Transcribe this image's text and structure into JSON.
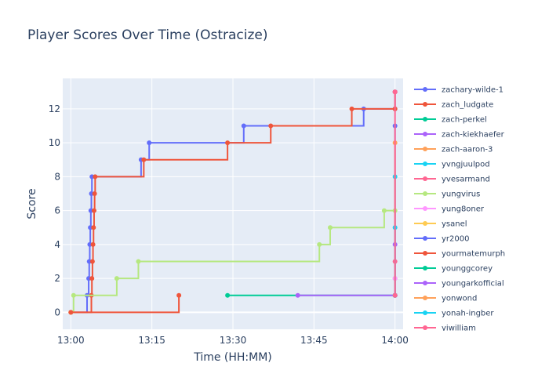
{
  "chart_data": {
    "type": "line",
    "line_shape": "step",
    "title": "Player Scores Over Time (Ostracize)",
    "xlabel": "Time (HH:MM)",
    "ylabel": "Score",
    "x_unit": "minutes after 13:00",
    "xlim": [
      -1.5,
      61.5
    ],
    "ylim": [
      -1,
      13.8
    ],
    "x_ticks": [
      {
        "value": 0,
        "label": "13:00"
      },
      {
        "value": 15,
        "label": "13:15"
      },
      {
        "value": 30,
        "label": "13:30"
      },
      {
        "value": 45,
        "label": "13:45"
      },
      {
        "value": 60,
        "label": "14:00"
      }
    ],
    "y_ticks": [
      0,
      2,
      4,
      6,
      8,
      10,
      12
    ],
    "grid": true,
    "legend_position": "right",
    "plot_background": "#e5ecf6",
    "series": [
      {
        "name": "zachary-wilde-1",
        "color": "#636efa",
        "points": [
          [
            0,
            0
          ],
          [
            3,
            1
          ],
          [
            3.3,
            2
          ],
          [
            3.4,
            3
          ],
          [
            3.5,
            4
          ],
          [
            3.6,
            5
          ],
          [
            3.7,
            6
          ],
          [
            3.8,
            7
          ],
          [
            3.9,
            8
          ],
          [
            13,
            9
          ],
          [
            14.5,
            10
          ],
          [
            32,
            11
          ],
          [
            54.2,
            12
          ],
          [
            60,
            12
          ],
          [
            60,
            13
          ]
        ]
      },
      {
        "name": "zach_ludgate",
        "color": "#ef553b",
        "points": [
          [
            0,
            0
          ],
          [
            3.8,
            1
          ],
          [
            3.9,
            2
          ],
          [
            4,
            3
          ],
          [
            4.1,
            4
          ],
          [
            4.2,
            5
          ],
          [
            4.3,
            6
          ],
          [
            4.4,
            7
          ],
          [
            4.5,
            8
          ],
          [
            13.5,
            9
          ],
          [
            29,
            10
          ],
          [
            37,
            11
          ],
          [
            52,
            12
          ],
          [
            60,
            12
          ],
          [
            60,
            13
          ]
        ]
      },
      {
        "name": "zach-perkel",
        "color": "#00cc96",
        "points": [
          [
            29,
            1
          ],
          [
            60,
            1
          ]
        ]
      },
      {
        "name": "zach-kiekhaefer",
        "color": "#ab63fa",
        "points": [
          [
            42,
            1
          ],
          [
            60,
            1
          ]
        ]
      },
      {
        "name": "zach-aaron-3",
        "color": "#ffa15a",
        "points": [
          [
            60,
            1
          ],
          [
            60,
            2
          ]
        ]
      },
      {
        "name": "yvngjuulpod",
        "color": "#19d3f3",
        "points": [
          [
            60,
            1
          ],
          [
            60,
            8
          ]
        ]
      },
      {
        "name": "yvesarmand",
        "color": "#ff6692",
        "points": [
          [
            60,
            1
          ],
          [
            60,
            3
          ]
        ]
      },
      {
        "name": "yungvirus",
        "color": "#b6e880",
        "points": [
          [
            0,
            0
          ],
          [
            0.5,
            1
          ],
          [
            8.5,
            2
          ],
          [
            12.5,
            3
          ],
          [
            46,
            4
          ],
          [
            48,
            5
          ],
          [
            58,
            6
          ],
          [
            60,
            6
          ]
        ]
      },
      {
        "name": "yung8oner",
        "color": "#ff97ff",
        "points": [
          [
            60,
            1
          ],
          [
            60,
            2
          ]
        ]
      },
      {
        "name": "ysanel",
        "color": "#fecb52",
        "points": [
          [
            0,
            0
          ]
        ]
      },
      {
        "name": "yr2000",
        "color": "#636efa",
        "points": [
          [
            60,
            1
          ],
          [
            60,
            11
          ]
        ]
      },
      {
        "name": "yourmatemurph",
        "color": "#ef553b",
        "points": [
          [
            0,
            0
          ],
          [
            20,
            1
          ]
        ]
      },
      {
        "name": "younggcorey",
        "color": "#00cc96",
        "points": [
          [
            60,
            1
          ]
        ]
      },
      {
        "name": "youngarkofficial",
        "color": "#ab63fa",
        "points": [
          [
            60,
            1
          ],
          [
            60,
            4
          ]
        ]
      },
      {
        "name": "yonwond",
        "color": "#ffa15a",
        "points": [
          [
            60,
            1
          ],
          [
            60,
            10
          ]
        ]
      },
      {
        "name": "yonah-ingber",
        "color": "#19d3f3",
        "points": [
          [
            60,
            1
          ],
          [
            60,
            5
          ]
        ]
      },
      {
        "name": "yiwilliam",
        "color": "#ff6692",
        "points": [
          [
            60,
            1
          ],
          [
            60,
            13
          ]
        ]
      }
    ]
  }
}
